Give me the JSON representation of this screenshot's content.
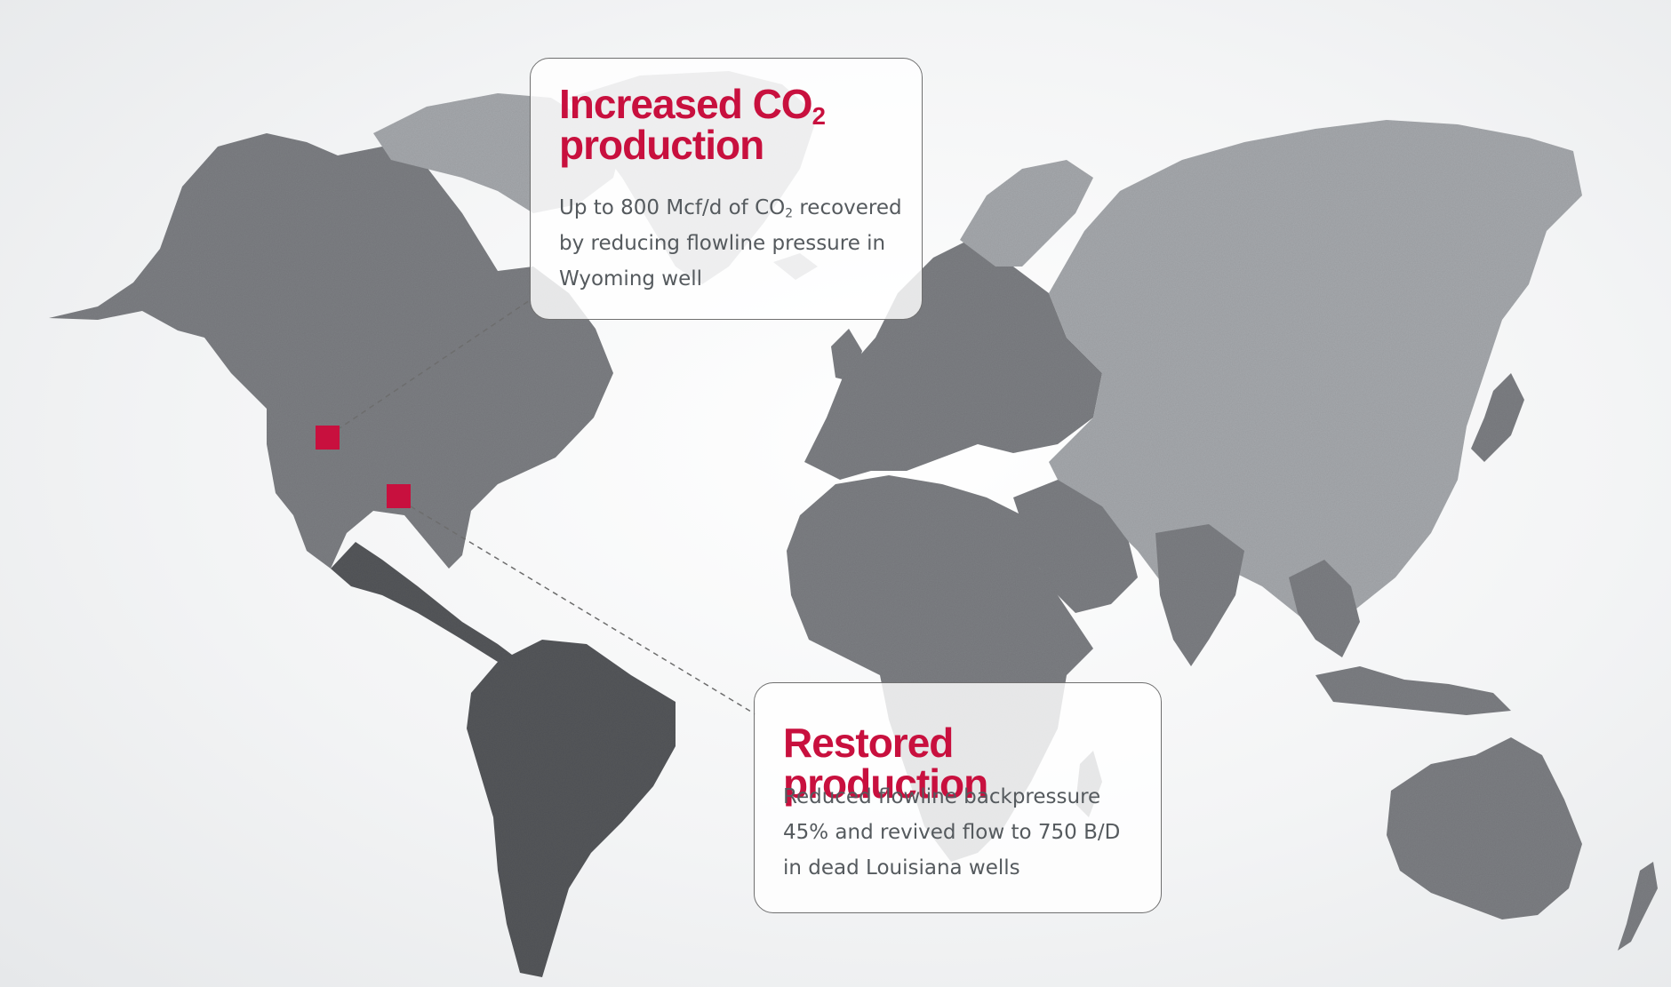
{
  "colors": {
    "accent": "#c8103e",
    "land_dark": "#55575b",
    "land_mid": "#7d7f83",
    "land_light": "#a6a9ad",
    "connector": "#6d6d6d",
    "text": "#555a5e"
  },
  "callouts": [
    {
      "title_main": "Increased CO",
      "title_sub": "2",
      "title_rest": "production",
      "body_pre": "Up to 800 Mcf/d of CO",
      "body_sub": "2",
      "body_post": " recovered by reducing flowline pressure in Wyoming well"
    },
    {
      "title": "Restored production",
      "body": "Reduced flowline backpressure 45% and revived flow to 750 B/D in dead Louisiana wells"
    }
  ],
  "markers": [
    {
      "name": "wyoming-well"
    },
    {
      "name": "louisiana-wells"
    }
  ]
}
